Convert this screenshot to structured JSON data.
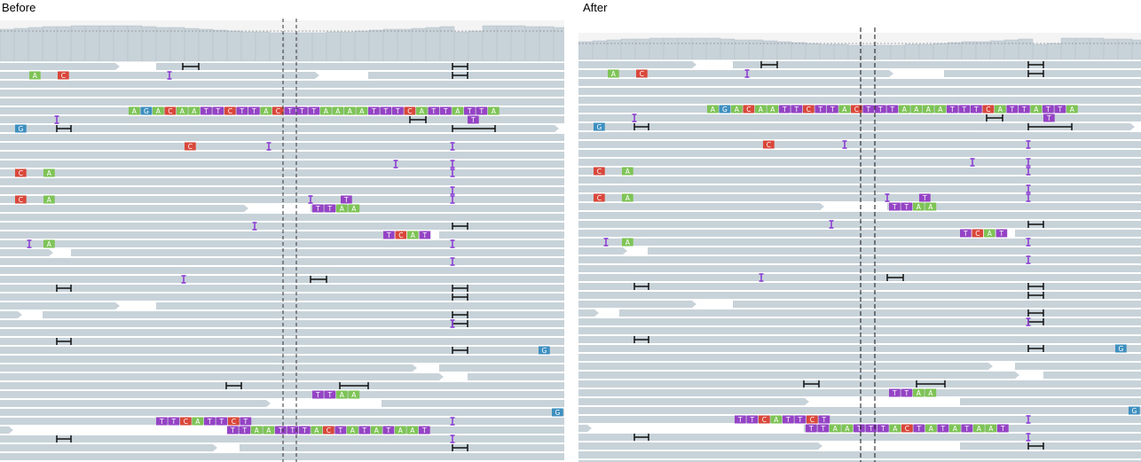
{
  "panels": [
    {
      "id": "before",
      "title": "Before",
      "colors": {
        "A": "#7dc356",
        "C": "#d9463a",
        "G": "#3d8fbf",
        "T": "#9443c4",
        "read": "#c8d2d9",
        "gap": "#ffffff",
        "insertion": "#8b3fd3",
        "deletion": "#111111",
        "guide": "#333333"
      },
      "long_reads": [
        {
          "row": 5,
          "bases": "AGACAATTCTTACTTTAAAATTTCATTATTA"
        },
        {
          "row": 40,
          "bases": "TTCATTCT"
        },
        {
          "row": 41,
          "bases": "TTAATTTACTATATAAT"
        }
      ],
      "short_reads": [
        {
          "row": 1,
          "items": [
            "A",
            "C"
          ]
        },
        {
          "row": 6,
          "items": [
            "T"
          ]
        },
        {
          "row": 7,
          "items": [
            "G"
          ]
        },
        {
          "row": 9,
          "items": [
            "C"
          ]
        },
        {
          "row": 12,
          "items": [
            "C",
            "A"
          ]
        },
        {
          "row": 15,
          "items": [
            "C",
            "A",
            "T"
          ]
        },
        {
          "row": 16,
          "items": [
            "TTAA"
          ]
        },
        {
          "row": 19,
          "items": [
            "TCAT"
          ]
        },
        {
          "row": 20,
          "items": [
            "A"
          ]
        },
        {
          "row": 32,
          "items": [
            "G"
          ]
        },
        {
          "row": 37,
          "items": [
            "TTAA"
          ]
        },
        {
          "row": 39,
          "items": [
            "G"
          ]
        }
      ]
    },
    {
      "id": "after",
      "title": "After",
      "colors": {
        "A": "#7dc356",
        "C": "#d9463a",
        "G": "#3d8fbf",
        "T": "#9443c4",
        "read": "#c8d2d9",
        "gap": "#ffffff",
        "insertion": "#8b3fd3",
        "deletion": "#111111",
        "guide": "#111111"
      },
      "long_reads": [
        {
          "row": 5,
          "bases": "AGACAATTCTTACTTTAAAATTTCATTATTA"
        },
        {
          "row": 40,
          "bases": "TTCATTCT"
        },
        {
          "row": 41,
          "bases": "TTAATTTACTATATAAT"
        }
      ],
      "short_reads": [
        {
          "row": 1,
          "items": [
            "A",
            "C"
          ]
        },
        {
          "row": 6,
          "items": [
            "T"
          ]
        },
        {
          "row": 7,
          "items": [
            "G"
          ]
        },
        {
          "row": 9,
          "items": [
            "C"
          ]
        },
        {
          "row": 12,
          "items": [
            "C",
            "A"
          ]
        },
        {
          "row": 15,
          "items": [
            "C",
            "A",
            "T"
          ]
        },
        {
          "row": 16,
          "items": [
            "TTAA"
          ]
        },
        {
          "row": 19,
          "items": [
            "TCAT"
          ]
        },
        {
          "row": 20,
          "items": [
            "A"
          ]
        },
        {
          "row": 32,
          "items": [
            "G"
          ]
        },
        {
          "row": 37,
          "items": [
            "TTAA"
          ]
        },
        {
          "row": 39,
          "items": [
            "G"
          ]
        }
      ]
    }
  ]
}
